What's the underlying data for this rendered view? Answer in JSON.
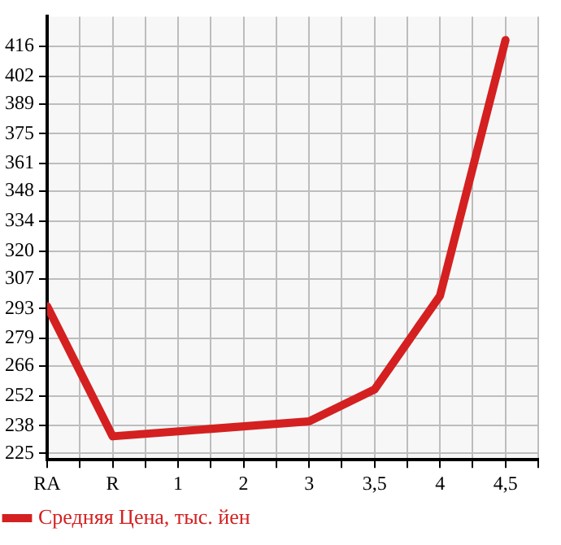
{
  "chart_data": {
    "type": "line",
    "categories": [
      "RA",
      "R",
      "1",
      "2",
      "3",
      "3,5",
      "4",
      "4,5"
    ],
    "series": [
      {
        "name": "Средняя Цена, тыс. йен",
        "color": "#d42020",
        "values": [
          294,
          233,
          null,
          null,
          240,
          255,
          299,
          419
        ]
      }
    ],
    "ylim": [
      222,
      430
    ],
    "yticks": [
      225,
      238,
      252,
      266,
      279,
      293,
      307,
      320,
      334,
      348,
      361,
      375,
      389,
      402,
      416
    ],
    "grid": true,
    "legend": "bottom left",
    "marker": "none",
    "line_style": "solid"
  }
}
